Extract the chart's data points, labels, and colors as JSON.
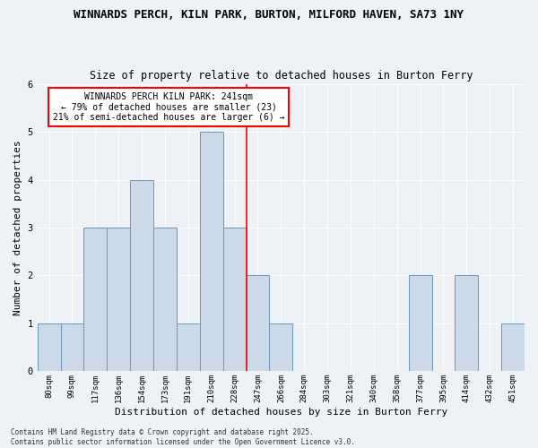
{
  "title": "WINNARDS PERCH, KILN PARK, BURTON, MILFORD HAVEN, SA73 1NY",
  "subtitle": "Size of property relative to detached houses in Burton Ferry",
  "xlabel": "Distribution of detached houses by size in Burton Ferry",
  "ylabel": "Number of detached properties",
  "categories": [
    "80sqm",
    "99sqm",
    "117sqm",
    "136sqm",
    "154sqm",
    "173sqm",
    "191sqm",
    "210sqm",
    "228sqm",
    "247sqm",
    "266sqm",
    "284sqm",
    "303sqm",
    "321sqm",
    "340sqm",
    "358sqm",
    "377sqm",
    "395sqm",
    "414sqm",
    "432sqm",
    "451sqm"
  ],
  "values": [
    1,
    1,
    3,
    3,
    4,
    3,
    1,
    5,
    3,
    2,
    1,
    0,
    0,
    0,
    0,
    0,
    2,
    0,
    2,
    0,
    1
  ],
  "bar_color": "#ccd9e8",
  "bar_edge_color": "#6699bb",
  "reference_line_index": 9,
  "reference_line_color": "red",
  "ylim": [
    0,
    6
  ],
  "annotation_text": "WINNARDS PERCH KILN PARK: 241sqm\n← 79% of detached houses are smaller (23)\n21% of semi-detached houses are larger (6) →",
  "annotation_box_color": "white",
  "annotation_box_edgecolor": "red",
  "footer": "Contains HM Land Registry data © Crown copyright and database right 2025.\nContains public sector information licensed under the Open Government Licence v3.0.",
  "background_color": "#eef2f7",
  "grid_color": "white",
  "title_fontsize": 9,
  "subtitle_fontsize": 8.5,
  "axis_label_fontsize": 8,
  "tick_fontsize": 6.5,
  "annotation_fontsize": 7,
  "footer_fontsize": 5.5
}
